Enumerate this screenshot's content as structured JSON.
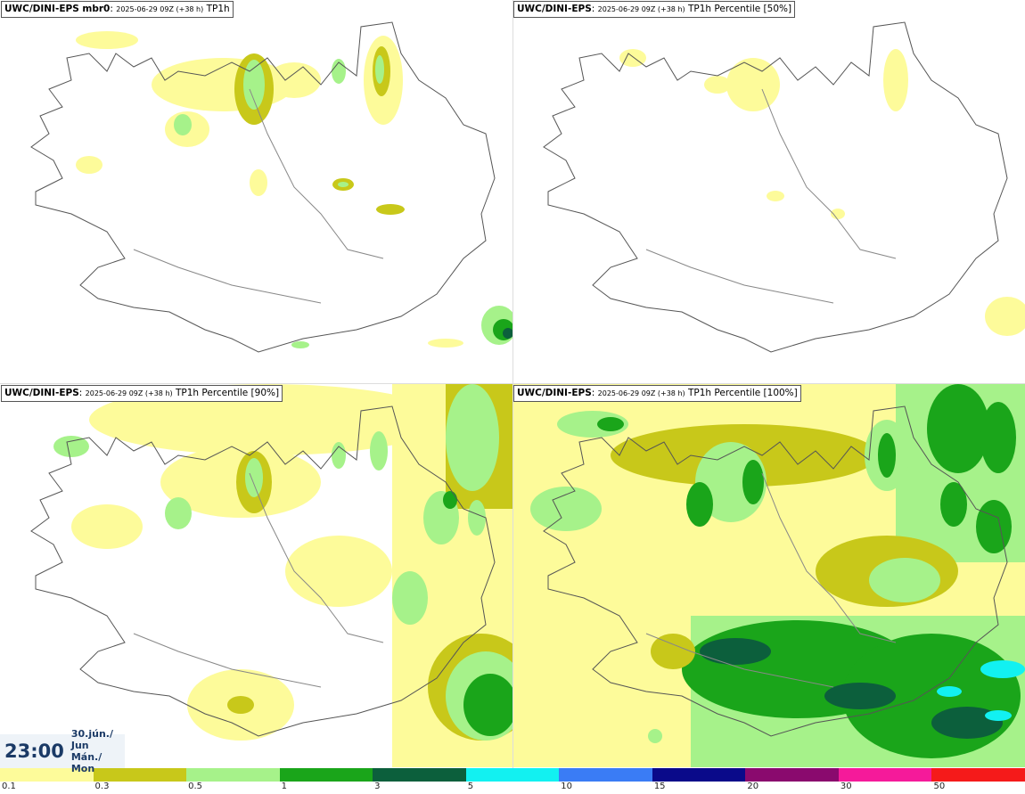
{
  "panels": [
    {
      "model": "UWC/DINI-EPS mbr0",
      "run": "2025-06-29 09Z (+38 h)",
      "field": "TP1h"
    },
    {
      "model": "UWC/DINI-EPS",
      "run": "2025-06-29 09Z (+38 h)",
      "field": "TP1h Percentile [50%]"
    },
    {
      "model": "UWC/DINI-EPS",
      "run": "2025-06-29 09Z (+38 h)",
      "field": "TP1h Percentile [90%]"
    },
    {
      "model": "UWC/DINI-EPS",
      "run": "2025-06-29 09Z (+38 h)",
      "field": "TP1h Percentile [100%]"
    }
  ],
  "valid_time": {
    "time": "23:00",
    "date_line": "30.jún./ Jun",
    "day_line": "Mán./ Mon"
  },
  "colorbar": {
    "colors": [
      "#fdfb9a",
      "#c8c81a",
      "#a6f28a",
      "#1aa51a",
      "#0c5f3c",
      "#12f1f1",
      "#3a7cf5",
      "#0a0a8a",
      "#8a0a6e",
      "#f51a9a",
      "#f51a1a"
    ],
    "labels": [
      "0.1",
      "0.3",
      "0.5",
      "1",
      "3",
      "5",
      "10",
      "15",
      "20",
      "30",
      "50"
    ]
  }
}
